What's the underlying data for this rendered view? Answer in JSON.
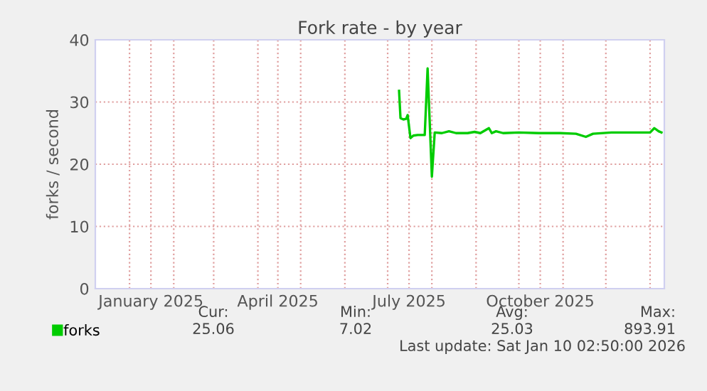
{
  "chart_data": {
    "type": "line",
    "title": "Fork rate - by year",
    "ylabel": "forks / second",
    "x": [
      "2025-07-09",
      "2025-07-10",
      "2025-07-12",
      "2025-07-14",
      "2025-07-15",
      "2025-07-17",
      "2025-07-19",
      "2025-07-22",
      "2025-07-27",
      "2025-07-29",
      "2025-08-01",
      "2025-08-03",
      "2025-08-08",
      "2025-08-13",
      "2025-08-18",
      "2025-08-26",
      "2025-08-31",
      "2025-09-04",
      "2025-09-10",
      "2025-09-12",
      "2025-09-15",
      "2025-09-20",
      "2025-10-01",
      "2025-10-15",
      "2025-10-30",
      "2025-11-10",
      "2025-11-17",
      "2025-11-22",
      "2025-12-05",
      "2025-12-20",
      "2026-01-01",
      "2026-01-04",
      "2026-01-07",
      "2026-01-09"
    ],
    "series": [
      {
        "name": "forks",
        "color": "#00cc00",
        "values": [
          31.8,
          27.4,
          27.2,
          27.3,
          27.9,
          24.2,
          24.6,
          24.7,
          24.7,
          35.4,
          18.0,
          25.1,
          25.0,
          25.3,
          25.0,
          25.0,
          25.2,
          25.0,
          25.8,
          25.0,
          25.3,
          25.0,
          25.1,
          25.0,
          25.0,
          24.9,
          24.4,
          24.9,
          25.1,
          25.1,
          25.1,
          25.8,
          25.3,
          25.1
        ]
      }
    ],
    "xlim": [
      "2024-12-08",
      "2026-01-11"
    ],
    "xticks": [
      {
        "value": "2025-01-01",
        "label": null
      },
      {
        "value": "2025-01-16",
        "label": "January 2025"
      },
      {
        "value": "2025-02-01",
        "label": null
      },
      {
        "value": "2025-03-01",
        "label": null
      },
      {
        "value": "2025-04-01",
        "label": null
      },
      {
        "value": "2025-04-15",
        "label": "April 2025"
      },
      {
        "value": "2025-05-01",
        "label": null
      },
      {
        "value": "2025-06-01",
        "label": null
      },
      {
        "value": "2025-07-01",
        "label": null
      },
      {
        "value": "2025-07-16",
        "label": "July 2025"
      },
      {
        "value": "2025-08-01",
        "label": null
      },
      {
        "value": "2025-09-01",
        "label": null
      },
      {
        "value": "2025-10-01",
        "label": null
      },
      {
        "value": "2025-10-16",
        "label": "October 2025"
      },
      {
        "value": "2025-11-01",
        "label": null
      },
      {
        "value": "2025-12-01",
        "label": null
      },
      {
        "value": "2026-01-01",
        "label": null
      }
    ],
    "ylim": [
      0,
      40
    ],
    "yticks": [
      0,
      10,
      20,
      30,
      40
    ],
    "grid": true,
    "legend": "bottom left",
    "line_style": "solid",
    "marker": "none",
    "annotations": [
      "Cur:",
      "25.06",
      "Min:",
      "7.02",
      "Avg:",
      "25.03",
      "Max:",
      "893.91",
      "Last update: Sat Jan 10 02:50:00 2026"
    ]
  }
}
